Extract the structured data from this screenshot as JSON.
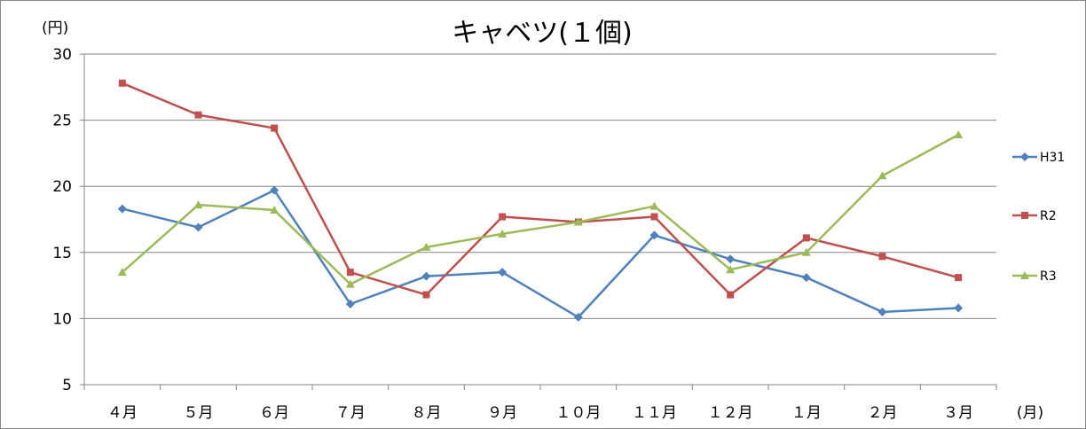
{
  "chart_data": {
    "type": "line",
    "title": "キャベツ(１個)",
    "ylabel": "(円)",
    "xlabel": "(月)",
    "ylim": [
      5,
      30
    ],
    "yticks": [
      5,
      10,
      15,
      20,
      25,
      30
    ],
    "grid": true,
    "legend_position": "right",
    "categories": [
      "４月",
      "５月",
      "６月",
      "７月",
      "８月",
      "９月",
      "１０月",
      "１１月",
      "１２月",
      "１月",
      "２月",
      "３月"
    ],
    "series": [
      {
        "name": "H31",
        "color": "#4f81bd",
        "marker": "diamond",
        "values": [
          18.3,
          16.9,
          19.7,
          11.1,
          13.2,
          13.5,
          10.1,
          16.3,
          14.5,
          13.1,
          10.5,
          10.8
        ]
      },
      {
        "name": "R2",
        "color": "#c0504d",
        "marker": "square",
        "values": [
          27.8,
          25.4,
          24.4,
          13.5,
          11.8,
          17.7,
          17.3,
          17.7,
          11.8,
          16.1,
          14.7,
          13.1
        ]
      },
      {
        "name": "R3",
        "color": "#9bbb59",
        "marker": "triangle",
        "values": [
          13.5,
          18.6,
          18.2,
          12.6,
          15.4,
          16.4,
          17.3,
          18.5,
          13.7,
          15.0,
          20.8,
          23.9
        ]
      }
    ]
  }
}
